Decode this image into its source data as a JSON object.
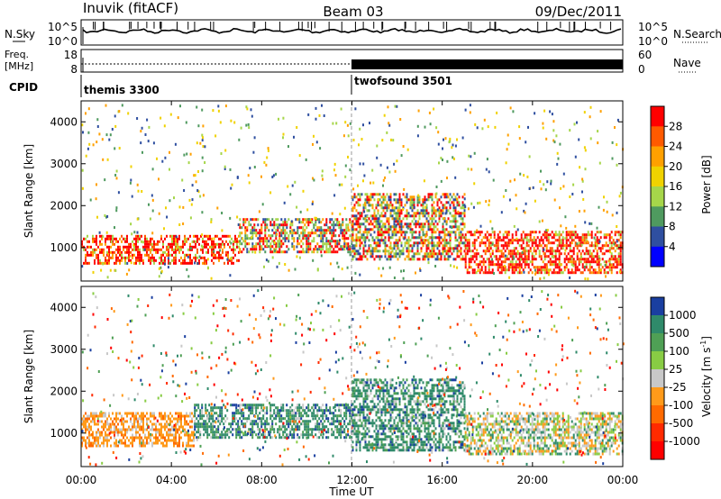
{
  "header": {
    "station": "Inuvik (fitACF)",
    "beam": "Beam 03",
    "date": "09/Dec/2011"
  },
  "noise_panel": {
    "left_label": "N.Sky",
    "right_label": "N.Search",
    "left_ticks": [
      "10^5",
      "10^0"
    ],
    "right_ticks": [
      "10^5",
      "10^0"
    ]
  },
  "freq_panel": {
    "left_label_1": "Freq.",
    "left_label_2": "[MHz]",
    "right_label": "Nave",
    "left_ticks": [
      "18",
      "8"
    ],
    "right_ticks": [
      "60",
      "0"
    ]
  },
  "cpid": {
    "label": "CPID",
    "modes": [
      {
        "name": "themis 3300",
        "start_hour": 0
      },
      {
        "name": "twofsound 3501",
        "start_hour": 12
      }
    ]
  },
  "chart_data": [
    {
      "type": "heatmap",
      "panel": "power",
      "ylabel": "Slant Range [km]",
      "ylim": [
        200,
        4500
      ],
      "yticks": [
        "1000",
        "2000",
        "3000",
        "4000"
      ],
      "xlim": [
        0,
        24
      ],
      "colorbar": {
        "label": "Power [dB]",
        "ticks": [
          "28",
          "24",
          "20",
          "16",
          "12",
          "8",
          "4"
        ],
        "colors": [
          "#ff0000",
          "#ff5a00",
          "#ffa000",
          "#f0d200",
          "#a6d64a",
          "#4f9a5f",
          "#2f4fa0",
          "#0000ff"
        ]
      },
      "echo_bands": [
        {
          "x": [
            0,
            7
          ],
          "y_range_km": [
            600,
            1300
          ],
          "level": "high"
        },
        {
          "x": [
            7,
            12
          ],
          "y_range_km": [
            900,
            1700
          ],
          "level": "mid"
        },
        {
          "x": [
            12,
            17
          ],
          "y_range_km": [
            700,
            2300
          ],
          "level": "mid"
        },
        {
          "x": [
            17,
            24
          ],
          "y_range_km": [
            400,
            1400
          ],
          "level": "high"
        }
      ]
    },
    {
      "type": "heatmap",
      "panel": "velocity",
      "ylabel": "Slant Range [km]",
      "ylim": [
        200,
        4500
      ],
      "yticks": [
        "1000",
        "2000",
        "3000",
        "4000"
      ],
      "xlim": [
        0,
        24
      ],
      "xticks": [
        "00:00",
        "04:00",
        "08:00",
        "12:00",
        "16:00",
        "20:00",
        "00:00"
      ],
      "xlabel": "Time UT",
      "colorbar": {
        "label": "Velocity [m s",
        "label_sup": "-1",
        "label_end": "]",
        "ticks": [
          "1000",
          "500",
          "100",
          "25",
          "-25",
          "-100",
          "-500",
          "-1000"
        ],
        "colors": [
          "#1a3fa0",
          "#2f8a6a",
          "#4fa055",
          "#88cc44",
          "#c8c8c8",
          "#ff9a1a",
          "#ff6a00",
          "#ff2a00",
          "#ff0000"
        ]
      },
      "echo_bands": [
        {
          "x": [
            0,
            5
          ],
          "y_range_km": [
            700,
            1500
          ],
          "level": "negative"
        },
        {
          "x": [
            5,
            12
          ],
          "y_range_km": [
            900,
            1700
          ],
          "level": "positive"
        },
        {
          "x": [
            12,
            17
          ],
          "y_range_km": [
            600,
            2300
          ],
          "level": "positive"
        },
        {
          "x": [
            17,
            24
          ],
          "y_range_km": [
            500,
            1500
          ],
          "level": "mixed"
        }
      ]
    }
  ]
}
